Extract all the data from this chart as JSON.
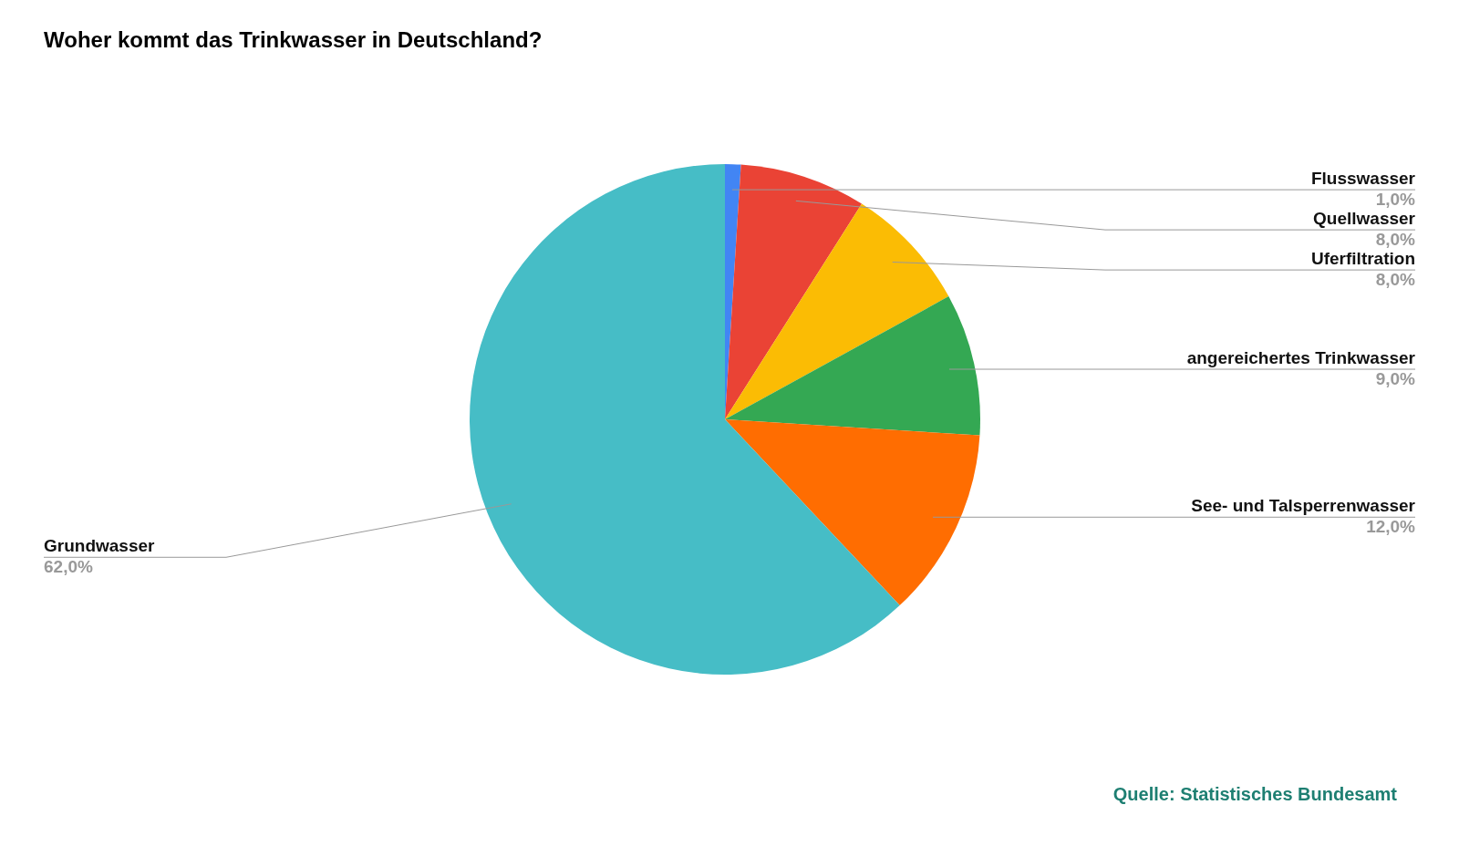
{
  "chart_data": {
    "type": "pie",
    "title": "Woher kommt das Trinkwasser in Deutschland?",
    "categories": [
      "Flusswasser",
      "Quellwasser",
      "Uferfiltration",
      "angereichertes Trinkwasser",
      "See- und Talsperrenwasser",
      "Grundwasser"
    ],
    "values": [
      1,
      8,
      8,
      9,
      12,
      62
    ],
    "value_labels": [
      "1,0%",
      "8,0%",
      "8,0%",
      "9,0%",
      "12,0%",
      "62,0%"
    ],
    "colors": [
      "#4285f4",
      "#ea4335",
      "#fbbc04",
      "#34a853",
      "#ff6d01",
      "#46bdc6"
    ],
    "legend": false,
    "annotations": [
      "Quelle: Statistisches Bundesamt"
    ]
  }
}
